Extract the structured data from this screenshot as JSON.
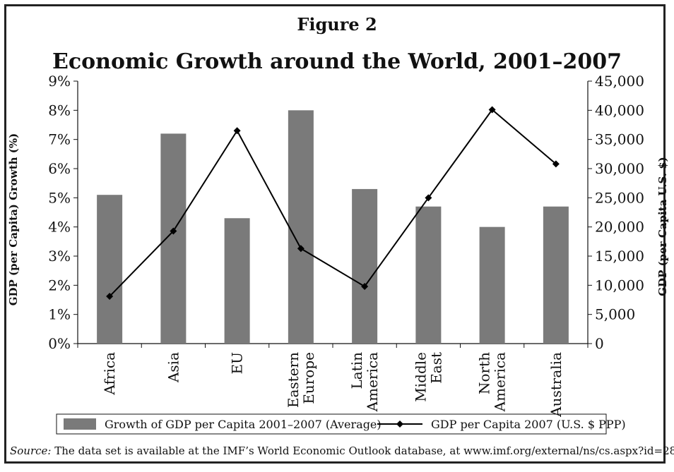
{
  "figure_label": "Figure 2",
  "source": {
    "label": "Source:",
    "text": "The data set is available at the IMF’s World Economic Outlook database, at www.imf.org/external/ns/cs.aspx?id=28"
  },
  "chart_data": {
    "type": "bar",
    "title": "Economic Growth around the World, 2001–2007",
    "categories": [
      [
        "Africa"
      ],
      [
        "Asia"
      ],
      [
        "EU"
      ],
      [
        "Eastern",
        "Europe"
      ],
      [
        "Latin",
        "America"
      ],
      [
        "Middle",
        "East"
      ],
      [
        "North",
        "America"
      ],
      [
        "Australia"
      ]
    ],
    "series": [
      {
        "name": "Growth of GDP per Capita 2001–2007 (Average)",
        "type": "bar",
        "axis": "left",
        "color": "#7a7a7a",
        "values": [
          5.1,
          7.2,
          4.3,
          8.0,
          5.3,
          4.7,
          4.0,
          4.7
        ]
      },
      {
        "name": "GDP per Capita 2007 (U.S. $ PPP)",
        "type": "line",
        "axis": "right",
        "color": "#000000",
        "marker": "diamond",
        "values": [
          8100,
          19300,
          36500,
          16300,
          9800,
          25000,
          40100,
          30800
        ]
      }
    ],
    "y_left": {
      "label": "GDP (per Capita) Growth (%)",
      "range": [
        0,
        9
      ],
      "ticks": [
        "0%",
        "1%",
        "2%",
        "3%",
        "4%",
        "5%",
        "6%",
        "7%",
        "8%",
        "9%"
      ]
    },
    "y_right": {
      "label": "GDP (per Capita U.S. $)",
      "range": [
        0,
        45000
      ],
      "ticks": [
        "0",
        "5,000",
        "10,000",
        "15,000",
        "20,000",
        "25,000",
        "30,000",
        "35,000",
        "40,000",
        "45,000"
      ]
    },
    "grid": false,
    "legend_position": "bottom"
  }
}
